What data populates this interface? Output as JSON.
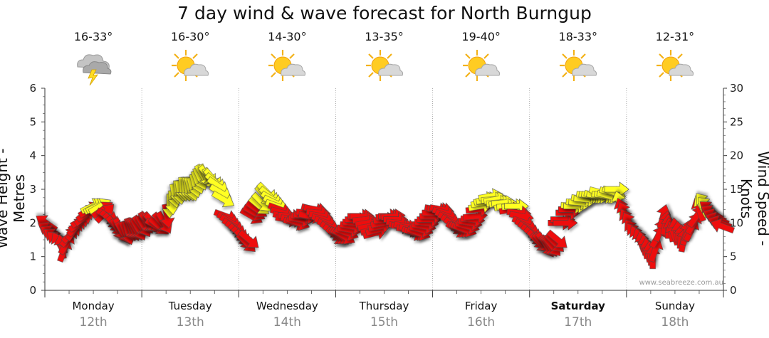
{
  "chart_data": {
    "type": "wind-wave-forecast",
    "title": "7 day wind & wave forecast for North Burngup",
    "ylabel_left": "Wave Height - Metres",
    "ylabel_right": "Wind Speed - Knots",
    "y_left_range": [
      0,
      6
    ],
    "y_right_range": [
      0,
      30
    ],
    "y_left_ticks": [
      "0",
      "1",
      "2",
      "3",
      "4",
      "5",
      "6"
    ],
    "y_right_ticks": [
      "0",
      "5",
      "10",
      "15",
      "20",
      "25",
      "30"
    ],
    "grid": "vertical dotted at day boundaries",
    "days": [
      {
        "name": "Monday",
        "date": "12th",
        "temp": "16-33°",
        "icon": "storm-cloud-icon",
        "bold": false
      },
      {
        "name": "Tuesday",
        "date": "13th",
        "temp": "16-30°",
        "icon": "sun-cloud-icon",
        "bold": false
      },
      {
        "name": "Wednesday",
        "date": "14th",
        "temp": "14-30°",
        "icon": "sun-cloud-icon",
        "bold": false
      },
      {
        "name": "Thursday",
        "date": "15th",
        "temp": "13-35°",
        "icon": "sun-cloud-icon",
        "bold": false
      },
      {
        "name": "Friday",
        "date": "16th",
        "temp": "19-40°",
        "icon": "sun-cloud-icon",
        "bold": false
      },
      {
        "name": "Saturday",
        "date": "17th",
        "temp": "18-33°",
        "icon": "sun-cloud-icon",
        "bold": true
      },
      {
        "name": "Sunday",
        "date": "18th",
        "temp": "12-31°",
        "icon": "sun-cloud-icon",
        "bold": false
      }
    ],
    "colors": {
      "strong_wind": "#ee1111",
      "light_wind": "#ffff22",
      "arrow_stroke": "#444444"
    },
    "wind_knots": [
      10,
      9,
      8.5,
      8,
      7.5,
      7,
      6.5,
      6,
      7,
      8,
      8.5,
      9,
      9.5,
      10,
      10.5,
      11,
      11.5,
      12,
      12.5,
      12.5,
      12.5,
      12.5,
      12,
      11.5,
      11,
      10.5,
      10,
      9.5,
      9,
      9,
      8.5,
      8.5,
      8.5,
      9,
      9,
      9,
      9,
      9.5,
      9.5,
      10,
      10,
      10,
      10,
      9.5,
      9.5,
      10,
      10,
      11,
      12.5,
      13,
      14,
      14.5,
      14.5,
      15,
      15,
      15,
      15,
      15,
      15.5,
      16,
      16.5,
      17,
      17,
      17,
      16.5,
      16.5,
      16,
      15.5,
      14.5,
      13.5,
      11,
      10.5,
      10,
      9.5,
      9,
      8.5,
      8,
      7.5,
      7,
      7.5,
      11,
      11.5,
      12,
      12.5,
      13,
      14,
      14.5,
      14,
      13.5,
      13,
      12.5,
      12,
      11.5,
      11,
      10.5,
      11,
      10.5,
      10,
      10,
      10.5,
      11,
      11,
      11.5,
      11,
      12,
      12,
      11.5,
      11,
      10.5,
      10,
      9.5,
      9,
      8.5,
      8,
      8,
      8,
      8,
      8.5,
      9,
      9.5,
      10,
      10.5,
      11,
      11,
      10.5,
      10,
      9.5,
      9,
      8.5,
      9,
      9.5,
      10,
      10.5,
      11,
      11,
      11,
      10.5,
      10,
      9.5,
      9.5,
      9.5,
      9,
      9,
      8.5,
      8.5,
      8.5,
      9,
      9.5,
      10,
      10.5,
      11,
      11.5,
      12,
      12,
      12,
      11.5,
      11,
      10.5,
      10,
      9.5,
      9,
      9,
      9,
      9,
      9.5,
      10,
      10.5,
      11,
      12,
      12.5,
      13,
      13.5,
      13.5,
      14,
      13.5,
      13.5,
      13,
      13,
      13,
      12.5,
      12.5,
      12,
      12.5,
      12.5,
      11.5,
      11,
      10,
      9.5,
      9,
      8.5,
      8,
      7.5,
      7,
      7,
      7,
      6.5,
      6.5,
      6.5,
      7,
      7.5,
      10,
      10.5,
      10,
      11.5,
      12,
      12.5,
      12.5,
      13,
      13,
      13.5,
      13.5,
      14,
      14,
      14,
      14,
      14,
      14.5,
      14,
      14,
      14,
      14.5,
      14.5,
      15,
      13,
      12,
      11.5,
      10.5,
      10,
      9,
      8.5,
      8,
      7.5,
      7,
      6.5,
      6,
      5.5,
      5,
      6,
      8,
      9,
      11,
      10,
      9.5,
      9,
      8.5,
      9,
      8.5,
      8,
      7.5,
      8.5,
      9,
      9,
      10,
      11,
      12,
      12.5,
      13,
      12.5,
      12,
      11.5,
      11,
      10.5,
      10,
      9.5
    ],
    "wind_dir_deg": [
      305,
      300,
      300,
      305,
      310,
      330,
      350,
      20,
      30,
      40,
      45,
      35,
      45,
      55,
      60,
      50,
      55,
      60,
      65,
      60,
      65,
      60,
      55,
      45,
      120,
      130,
      135,
      140,
      150,
      155,
      150,
      160,
      165,
      160,
      155,
      150,
      150,
      145,
      150,
      150,
      140,
      145,
      135,
      120,
      130,
      140,
      150,
      170,
      180,
      175,
      170,
      175,
      170,
      175,
      175,
      170,
      165,
      165,
      165,
      160,
      155,
      150,
      155,
      140,
      150,
      140,
      130,
      125,
      120,
      120,
      110,
      115,
      120,
      120,
      125,
      130,
      135,
      140,
      135,
      130,
      120,
      120,
      125,
      130,
      135,
      140,
      135,
      130,
      120,
      115,
      110,
      110,
      105,
      100,
      100,
      95,
      100,
      105,
      110,
      100,
      95,
      100,
      95,
      100,
      105,
      100,
      95,
      100,
      105,
      110,
      115,
      120,
      125,
      130,
      130,
      125,
      120,
      110,
      100,
      100,
      95,
      90,
      90,
      90,
      85,
      80,
      80,
      75,
      75,
      75,
      80,
      80,
      85,
      85,
      90,
      85,
      90,
      95,
      100,
      95,
      100,
      100,
      105,
      110,
      105,
      110,
      105,
      100,
      95,
      90,
      90,
      90,
      100,
      95,
      100,
      105,
      110,
      115,
      120,
      125,
      120,
      120,
      115,
      110,
      105,
      100,
      95,
      85,
      85,
      80,
      80,
      75,
      80,
      80,
      85,
      80,
      85,
      80,
      85,
      80,
      85,
      80,
      85,
      90,
      95,
      100,
      110,
      115,
      120,
      125,
      130,
      135,
      135,
      140,
      145,
      150,
      145,
      140,
      135,
      130,
      90,
      90,
      90,
      90,
      90,
      95,
      90,
      95,
      95,
      100,
      95,
      100,
      100,
      100,
      105,
      100,
      105,
      100,
      100,
      105,
      105,
      110,
      90,
      345,
      340,
      335,
      330,
      330,
      325,
      320,
      330,
      340,
      345,
      350,
      350,
      355,
      0,
      20,
      30,
      20,
      15,
      10,
      0,
      350,
      340,
      350,
      355,
      5,
      10,
      15,
      20,
      25,
      30,
      35,
      340,
      330,
      320,
      315,
      310,
      300,
      295,
      290,
      290,
      290,
      285,
      285,
      285,
      290
    ],
    "credit": "www.seabreeze.com.au"
  }
}
